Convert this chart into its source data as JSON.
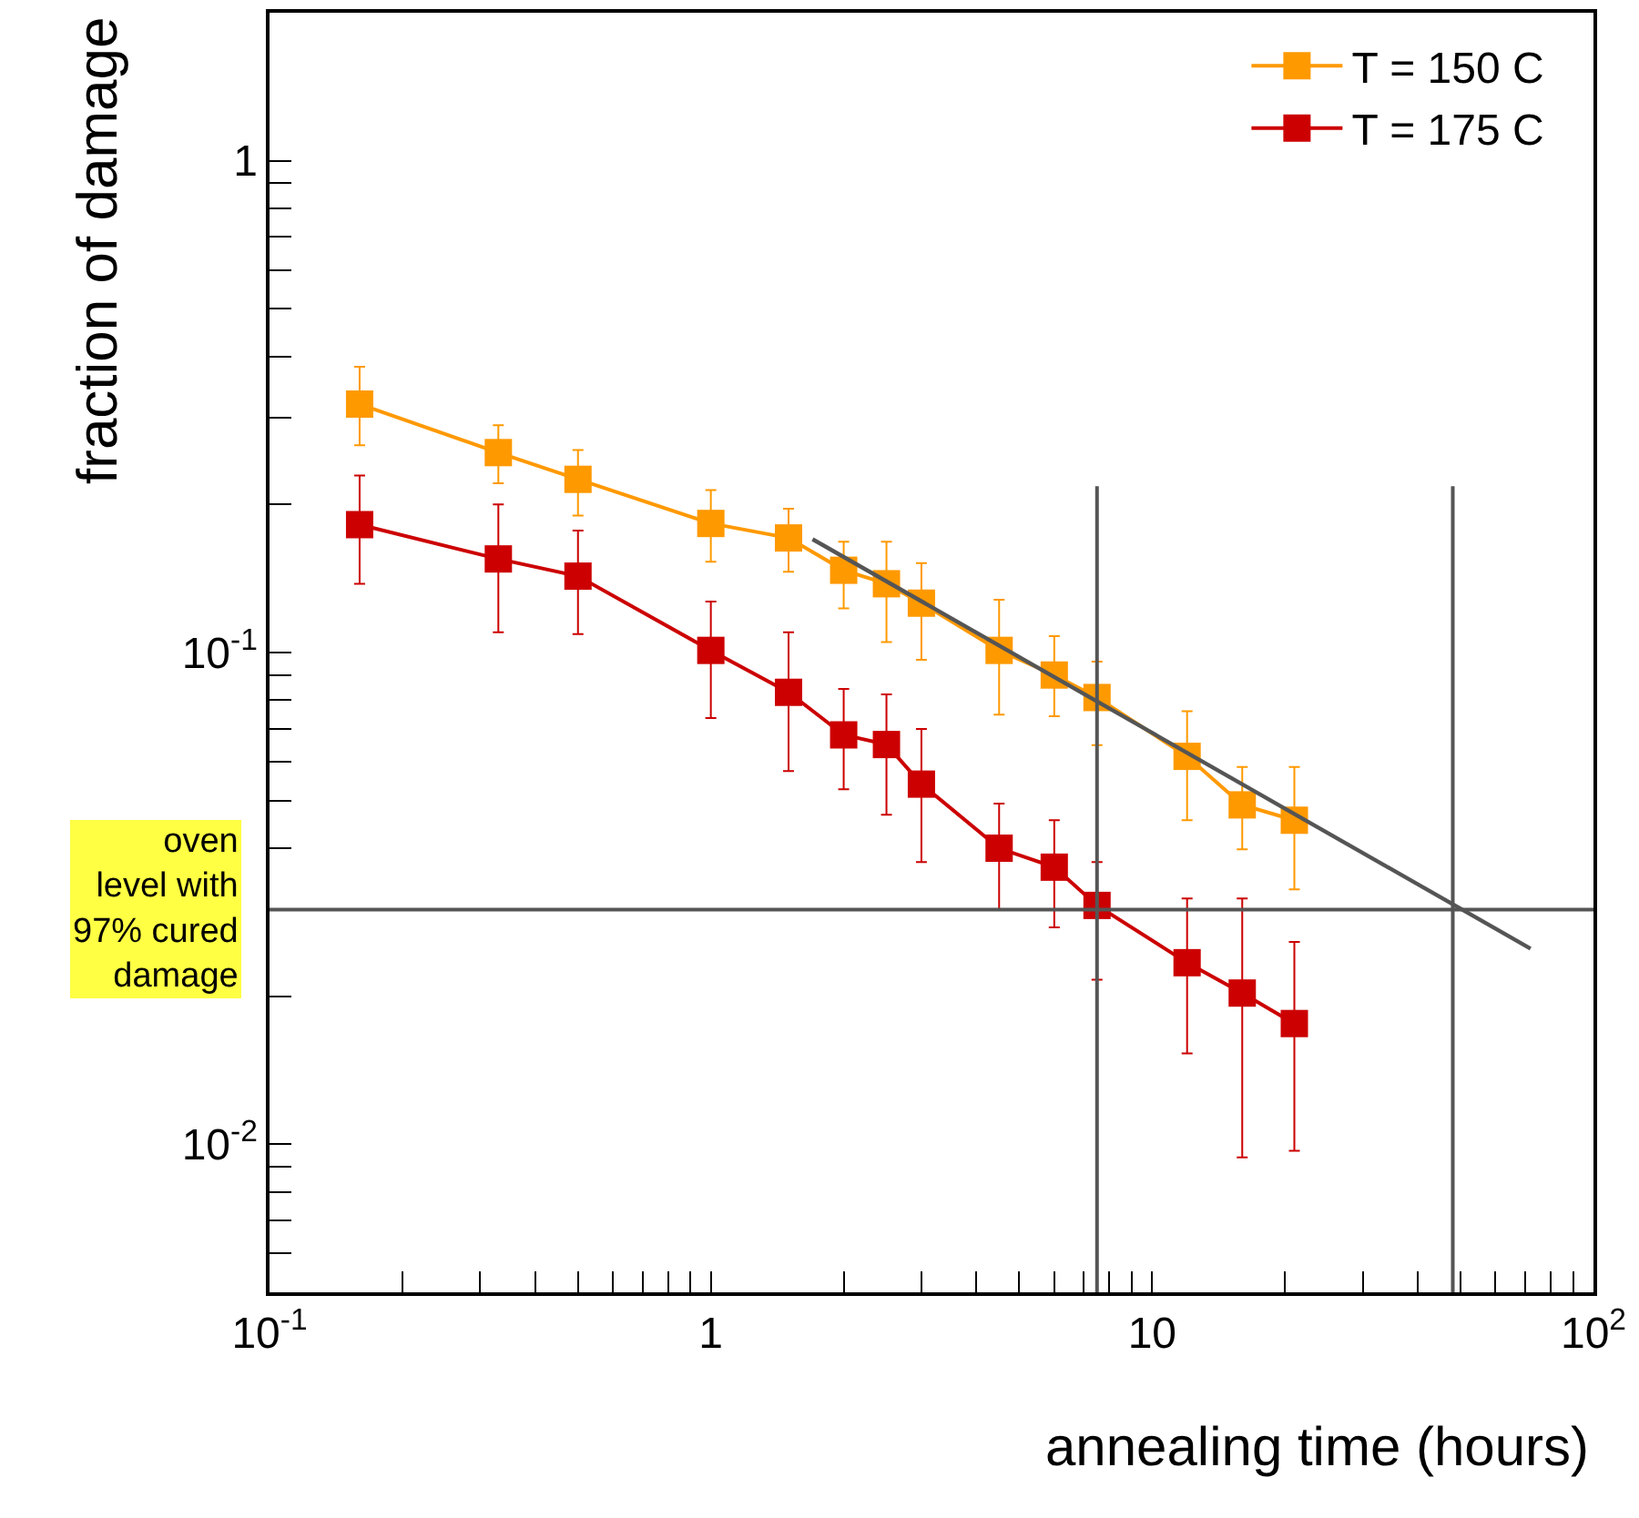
{
  "chart_data": {
    "type": "line",
    "xlabel": "annealing time (hours)",
    "ylabel": "fraction of damage",
    "log": "xy",
    "legend": "top right",
    "marker": "square",
    "line_style": "solid",
    "xlim": [
      0.1,
      100
    ],
    "ylim": [
      0.005,
      2
    ],
    "xticks": [
      {
        "value": 0.1,
        "label": "10$^{-1}$"
      },
      {
        "value": 0.2,
        "label": null
      },
      {
        "value": 0.3,
        "label": null
      },
      {
        "value": 0.4,
        "label": null
      },
      {
        "value": 0.5,
        "label": null
      },
      {
        "value": 0.6,
        "label": null
      },
      {
        "value": 0.7,
        "label": null
      },
      {
        "value": 0.8,
        "label": null
      },
      {
        "value": 0.9,
        "label": null
      },
      1,
      {
        "value": 2,
        "label": null
      },
      {
        "value": 3,
        "label": null
      },
      {
        "value": 4,
        "label": null
      },
      {
        "value": 5,
        "label": null
      },
      {
        "value": 6,
        "label": null
      },
      {
        "value": 7,
        "label": null
      },
      {
        "value": 8,
        "label": null
      },
      {
        "value": 9,
        "label": null
      },
      10,
      {
        "value": 20,
        "label": null
      },
      {
        "value": 30,
        "label": null
      },
      {
        "value": 40,
        "label": null
      },
      {
        "value": 50,
        "label": null
      },
      {
        "value": 60,
        "label": null
      },
      {
        "value": 70,
        "label": null
      },
      {
        "value": 80,
        "label": null
      },
      {
        "value": 90,
        "label": null
      },
      {
        "value": 100,
        "label": "10$^{2}$"
      }
    ],
    "yticks": [
      {
        "value": 0.006,
        "label": null
      },
      {
        "value": 0.007,
        "label": null
      },
      {
        "value": 0.008,
        "label": null
      },
      {
        "value": 0.009,
        "label": null
      },
      {
        "value": 0.01,
        "label": "10$^{-2}$"
      },
      {
        "value": 0.02,
        "label": null
      },
      {
        "value": 0.03,
        "label": null
      },
      {
        "value": 0.04,
        "label": null
      },
      {
        "value": 0.05,
        "label": null
      },
      {
        "value": 0.06,
        "label": null
      },
      {
        "value": 0.07,
        "label": null
      },
      {
        "value": 0.08,
        "label": null
      },
      {
        "value": 0.09,
        "label": null
      },
      {
        "value": 0.1,
        "label": "10$^{-1}$"
      },
      {
        "value": 0.2,
        "label": null
      },
      {
        "value": 0.3,
        "label": null
      },
      {
        "value": 0.4,
        "label": null
      },
      {
        "value": 0.5,
        "label": null
      },
      {
        "value": 0.6,
        "label": null
      },
      {
        "value": 0.7,
        "label": null
      },
      {
        "value": 0.8,
        "label": null
      },
      {
        "value": 0.9,
        "label": null
      },
      1,
      {
        "value": 2,
        "label": null
      }
    ],
    "x": [
      0.16,
      0.33,
      0.5,
      1,
      1.5,
      2,
      2.5,
      3,
      4.5,
      6,
      7.5,
      12,
      16,
      21
    ],
    "series": [
      {
        "name": "T = 150 C",
        "color": "#ff9900",
        "values": [
          0.32,
          0.255,
          0.225,
          0.183,
          0.171,
          0.147,
          0.138,
          0.126,
          0.101,
          0.09,
          0.081,
          0.0615,
          0.049,
          0.0456
        ],
        "errors": [
          [
            0.264,
            0.381
          ],
          [
            0.221,
            0.29
          ],
          [
            0.19,
            0.258
          ],
          [
            0.153,
            0.214
          ],
          [
            0.146,
            0.196
          ],
          [
            0.123,
            0.168
          ],
          [
            0.105,
            0.168
          ],
          [
            0.0966,
            0.152
          ],
          [
            0.0748,
            0.128
          ],
          [
            0.0742,
            0.108
          ],
          [
            0.0648,
            0.0958
          ],
          [
            0.0456,
            0.076
          ],
          [
            0.0398,
            0.0585
          ],
          [
            0.033,
            0.0585
          ]
        ]
      },
      {
        "name": "T = 175 C",
        "color": "#cc0000",
        "values": [
          0.182,
          0.155,
          0.143,
          0.101,
          0.083,
          0.068,
          0.065,
          0.054,
          0.04,
          0.0366,
          0.0306,
          0.0234,
          0.0203,
          0.0176
        ],
        "errors": [
          [
            0.138,
            0.229
          ],
          [
            0.11,
            0.2
          ],
          [
            0.109,
            0.177
          ],
          [
            0.0736,
            0.127
          ],
          [
            0.0574,
            0.11
          ],
          [
            0.0527,
            0.0843
          ],
          [
            0.0468,
            0.0822
          ],
          [
            0.0375,
            0.0699
          ],
          [
            0.03,
            0.0493
          ],
          [
            0.0276,
            0.0456
          ],
          [
            0.0216,
            0.0375
          ],
          [
            0.0153,
            0.0316
          ],
          [
            0.0094,
            0.0316
          ],
          [
            0.0097,
            0.0258
          ]
        ]
      },
      {
        "type": "line",
        "color": "#555555",
        "marker": "none",
        "x": [
          1.7,
          72
        ],
        "values": [
          0.17,
          0.025
        ]
      }
    ],
    "ref_lines": [
      {
        "axis": "y",
        "value": 0.03,
        "label": "oven\nlevel with\n97% cured\ndamage",
        "color": "#555555"
      },
      {
        "axis": "x",
        "value": 7.5,
        "color": "#555555"
      },
      {
        "axis": "x",
        "value": 48,
        "color": "#555555"
      }
    ]
  }
}
